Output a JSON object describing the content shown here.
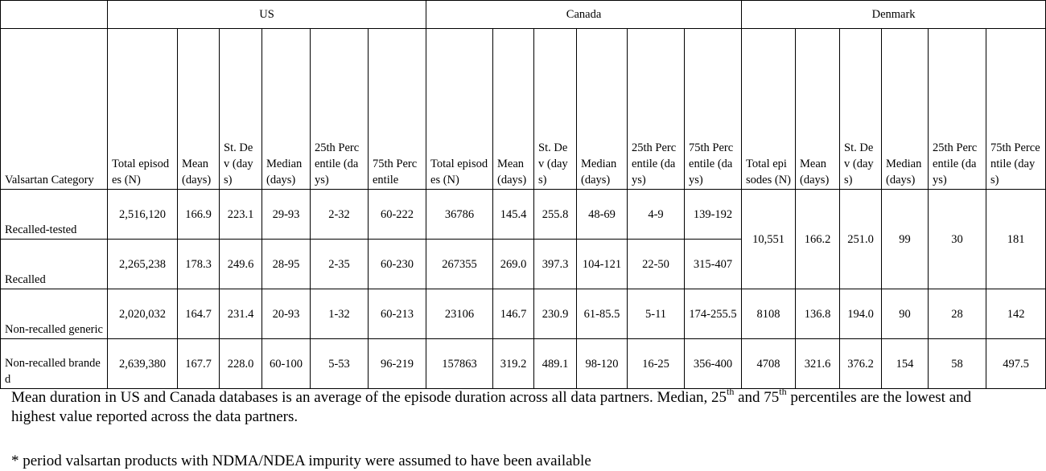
{
  "table": {
    "countries": [
      "US",
      "Canada",
      "Denmark"
    ],
    "category_header": "Valsartan Category",
    "subheaders": {
      "US": [
        "Total episodes (N)",
        "Mean (days)",
        "St. Dev (days)",
        "Median (days)",
        "25th Percentile (days)",
        "75th Percentile"
      ],
      "Canada": [
        "Total episodes (N)",
        "Mean (days)",
        "St. Dev (days)",
        "Median (days)",
        "25th Percentile (days)",
        "75th Percentile (days)"
      ],
      "Denmark": [
        "Total episodes (N)",
        "Mean (days)",
        "St. Dev (days)",
        "Median (days)",
        "25th Percentile (days)",
        "75th Percentile (days)"
      ]
    },
    "rows": [
      {
        "category": "Recalled-tested",
        "us": [
          "2,516,120",
          "166.9",
          "223.1",
          "29-93",
          "2-32",
          "60-222"
        ],
        "canada": [
          "36786",
          "145.4",
          "255.8",
          "48-69",
          "4-9",
          "139-192"
        ]
      },
      {
        "category": "Recalled",
        "us": [
          "2,265,238",
          "178.3",
          "249.6",
          "28-95",
          "2-35",
          "60-230"
        ],
        "canada": [
          "267355",
          "269.0",
          "397.3",
          "104-121",
          "22-50",
          "315-407"
        ]
      },
      {
        "category": "Non-recalled generic",
        "us": [
          "2,020,032",
          "164.7",
          "231.4",
          "20-93",
          "1-32",
          "60-213"
        ],
        "canada": [
          "23106",
          "146.7",
          "230.9",
          "61-85.5",
          "5-11",
          "174-255.5"
        ]
      },
      {
        "category": "Non-recalled branded",
        "us": [
          "2,639,380",
          "167.7",
          "228.0",
          "60-100",
          "5-53",
          "96-219"
        ],
        "canada": [
          "157863",
          "319.2",
          "489.1",
          "98-120",
          "16-25",
          "356-400"
        ]
      }
    ],
    "denmark_recalled_combined": [
      "10,551",
      "166.2",
      "251.0",
      "99",
      "30",
      "181"
    ],
    "denmark_rows": [
      [
        "8108",
        "136.8",
        "194.0",
        "90",
        "28",
        "142"
      ],
      [
        "4708",
        "321.6",
        "376.2",
        "154",
        "58",
        "497.5"
      ]
    ]
  },
  "notes": {
    "line1_a": "Mean duration in US and Canada databases is an average of the episode duration across all data partners. Median, 25",
    "sup_th": "th",
    "line1_b": " and 75",
    "line1_c": " percentiles are the lowest and highest value reported across the data partners.",
    "line2": "* period valsartan products with NDMA/NDEA impurity were assumed to have been available"
  }
}
